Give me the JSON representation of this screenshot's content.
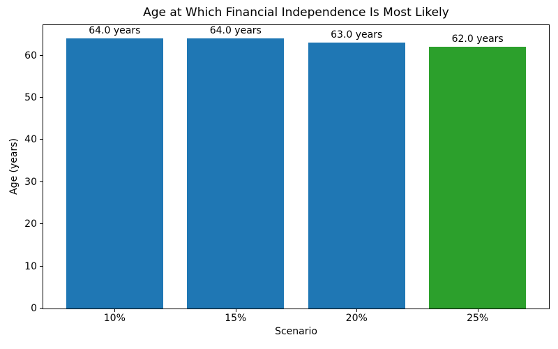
{
  "chart_data": {
    "type": "bar",
    "title": "Age at Which Financial Independence Is Most Likely",
    "xlabel": "Scenario",
    "ylabel": "Age (years)",
    "categories": [
      "10%",
      "15%",
      "20%",
      "25%"
    ],
    "values": [
      64.0,
      64.0,
      63.0,
      62.0
    ],
    "bar_labels": [
      "64.0 years",
      "64.0 years",
      "63.0 years",
      "62.0 years"
    ],
    "bar_colors": [
      "#1f77b4",
      "#1f77b4",
      "#1f77b4",
      "#2ca02c"
    ],
    "yticks": [
      0,
      10,
      20,
      30,
      40,
      50,
      60
    ],
    "ylim": [
      0,
      67.2
    ],
    "xlim": [
      -0.59,
      3.59
    ],
    "bar_width": 0.8,
    "grid": false,
    "background_color": "#ffffff",
    "spine_color": "#000000",
    "text_color": "#000000"
  }
}
